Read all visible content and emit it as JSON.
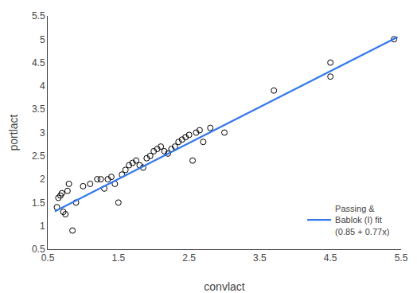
{
  "chart_data": {
    "type": "scatter",
    "xlabel": "convlact",
    "ylabel": "portlact",
    "xlim": [
      0.5,
      5.5
    ],
    "ylim": [
      0.5,
      5.5
    ],
    "xticks": [
      0.5,
      1.5,
      2.5,
      3.5,
      4.5,
      5.5
    ],
    "yticks": [
      0.5,
      1,
      1.5,
      2,
      2.5,
      3,
      3.5,
      4,
      4.5,
      5,
      5.5
    ],
    "grid": false,
    "legend": "lower right",
    "series": [
      {
        "type": "scatter",
        "marker": "circle-open",
        "color": "black",
        "x": [
          0.63,
          0.65,
          0.68,
          0.7,
          0.72,
          0.75,
          0.78,
          0.8,
          0.85,
          0.9,
          1.0,
          1.1,
          1.2,
          1.25,
          1.3,
          1.35,
          1.4,
          1.45,
          1.5,
          1.55,
          1.6,
          1.65,
          1.7,
          1.75,
          1.8,
          1.85,
          1.9,
          1.95,
          2.0,
          2.05,
          2.1,
          2.15,
          2.2,
          2.25,
          2.3,
          2.35,
          2.4,
          2.45,
          2.5,
          2.55,
          2.6,
          2.65,
          2.7,
          2.8,
          3.0,
          3.7,
          4.5,
          4.5,
          5.4
        ],
        "values": [
          1.4,
          1.6,
          1.65,
          1.7,
          1.3,
          1.25,
          1.75,
          1.9,
          0.9,
          1.5,
          1.85,
          1.9,
          2.0,
          2.0,
          1.8,
          2.0,
          2.05,
          1.9,
          1.5,
          2.1,
          2.2,
          2.3,
          2.35,
          2.4,
          2.3,
          2.25,
          2.45,
          2.5,
          2.6,
          2.65,
          2.7,
          2.6,
          2.55,
          2.65,
          2.7,
          2.8,
          2.85,
          2.9,
          2.95,
          2.4,
          3.0,
          3.05,
          2.8,
          3.1,
          3.0,
          3.9,
          4.2,
          4.5,
          5.0
        ]
      },
      {
        "type": "line",
        "name": "Passing &\nBablok (I) fit\n(0.85 + 0.77x)",
        "color": "#3377ee",
        "x": [
          0.6,
          5.45
        ],
        "values": [
          1.312,
          5.0465
        ]
      }
    ]
  }
}
